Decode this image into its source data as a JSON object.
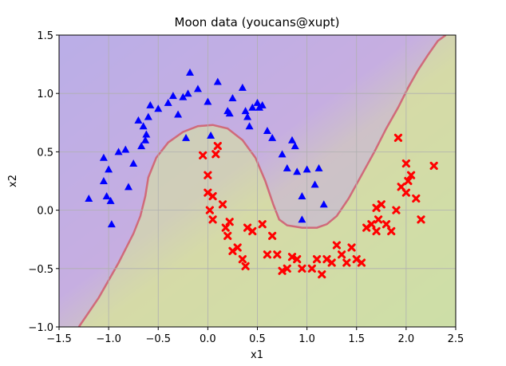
{
  "chart_data": {
    "type": "scatter",
    "title": "Moon data (youcans@xupt)",
    "xlabel": "x1",
    "ylabel": "x2",
    "xlim": [
      -1.5,
      2.5
    ],
    "ylim": [
      -1.0,
      1.5
    ],
    "xticks": [
      "−1.5",
      "−1.0",
      "−0.5",
      "0.0",
      "0.5",
      "1.0",
      "1.5",
      "2.0",
      "2.5"
    ],
    "yticks": [
      "−1.0",
      "−0.5",
      "0.0",
      "0.5",
      "1.0",
      "1.5"
    ],
    "grid": true,
    "background": {
      "type": "decision-regions",
      "upper_region_color": "#c8aee0",
      "lower_region_color": "#d6dca6",
      "boundary_color": "#d06a7a",
      "boundary": [
        [
          -1.3,
          -1.0
        ],
        [
          -1.1,
          -0.75
        ],
        [
          -0.9,
          -0.45
        ],
        [
          -0.75,
          -0.2
        ],
        [
          -0.68,
          -0.05
        ],
        [
          -0.63,
          0.12
        ],
        [
          -0.6,
          0.28
        ],
        [
          -0.52,
          0.45
        ],
        [
          -0.4,
          0.58
        ],
        [
          -0.25,
          0.67
        ],
        [
          -0.1,
          0.72
        ],
        [
          0.05,
          0.73
        ],
        [
          0.2,
          0.7
        ],
        [
          0.35,
          0.6
        ],
        [
          0.48,
          0.45
        ],
        [
          0.58,
          0.25
        ],
        [
          0.66,
          0.05
        ],
        [
          0.72,
          -0.08
        ],
        [
          0.8,
          -0.13
        ],
        [
          0.95,
          -0.15
        ],
        [
          1.1,
          -0.15
        ],
        [
          1.2,
          -0.12
        ],
        [
          1.3,
          -0.05
        ],
        [
          1.42,
          0.1
        ],
        [
          1.55,
          0.3
        ],
        [
          1.68,
          0.5
        ],
        [
          1.8,
          0.7
        ],
        [
          1.92,
          0.88
        ],
        [
          2.02,
          1.05
        ],
        [
          2.12,
          1.2
        ],
        [
          2.22,
          1.33
        ],
        [
          2.32,
          1.45
        ],
        [
          2.4,
          1.5
        ]
      ]
    },
    "series": [
      {
        "marker": "triangle",
        "color": "#0000ff",
        "points": [
          [
            -1.2,
            0.1
          ],
          [
            -1.05,
            0.45
          ],
          [
            -1.05,
            0.25
          ],
          [
            -1.02,
            0.12
          ],
          [
            -1.0,
            0.35
          ],
          [
            -0.98,
            0.08
          ],
          [
            -0.97,
            -0.12
          ],
          [
            -0.9,
            0.5
          ],
          [
            -0.83,
            0.52
          ],
          [
            -0.8,
            0.2
          ],
          [
            -0.75,
            0.4
          ],
          [
            -0.7,
            0.77
          ],
          [
            -0.65,
            0.72
          ],
          [
            -0.67,
            0.55
          ],
          [
            -0.63,
            0.6
          ],
          [
            -0.62,
            0.65
          ],
          [
            -0.6,
            0.8
          ],
          [
            -0.58,
            0.9
          ],
          [
            -0.5,
            0.87
          ],
          [
            -0.4,
            0.92
          ],
          [
            -0.35,
            0.98
          ],
          [
            -0.3,
            0.82
          ],
          [
            -0.25,
            0.97
          ],
          [
            -0.2,
            1.0
          ],
          [
            -0.22,
            0.62
          ],
          [
            -0.18,
            1.18
          ],
          [
            -0.1,
            1.04
          ],
          [
            0.0,
            0.93
          ],
          [
            0.03,
            0.64
          ],
          [
            0.1,
            1.1
          ],
          [
            0.2,
            0.85
          ],
          [
            0.22,
            0.83
          ],
          [
            0.25,
            0.96
          ],
          [
            0.35,
            1.05
          ],
          [
            0.38,
            0.85
          ],
          [
            0.4,
            0.8
          ],
          [
            0.42,
            0.72
          ],
          [
            0.45,
            0.88
          ],
          [
            0.5,
            0.92
          ],
          [
            0.52,
            0.88
          ],
          [
            0.55,
            0.9
          ],
          [
            0.6,
            0.68
          ],
          [
            0.65,
            0.62
          ],
          [
            0.75,
            0.48
          ],
          [
            0.8,
            0.36
          ],
          [
            0.85,
            0.6
          ],
          [
            0.88,
            0.55
          ],
          [
            0.9,
            0.33
          ],
          [
            0.95,
            0.12
          ],
          [
            1.0,
            0.35
          ],
          [
            1.08,
            0.22
          ],
          [
            1.12,
            0.36
          ],
          [
            1.17,
            0.05
          ],
          [
            0.95,
            -0.08
          ]
        ]
      },
      {
        "marker": "x",
        "color": "#ff0000",
        "points": [
          [
            -0.05,
            0.47
          ],
          [
            0.0,
            0.3
          ],
          [
            0.0,
            0.15
          ],
          [
            0.02,
            0.0
          ],
          [
            0.05,
            -0.08
          ],
          [
            0.05,
            0.12
          ],
          [
            0.08,
            0.48
          ],
          [
            0.1,
            0.55
          ],
          [
            0.15,
            0.05
          ],
          [
            0.18,
            -0.15
          ],
          [
            0.2,
            -0.22
          ],
          [
            0.22,
            -0.1
          ],
          [
            0.25,
            -0.35
          ],
          [
            0.3,
            -0.32
          ],
          [
            0.35,
            -0.42
          ],
          [
            0.38,
            -0.48
          ],
          [
            0.4,
            -0.15
          ],
          [
            0.45,
            -0.18
          ],
          [
            0.55,
            -0.12
          ],
          [
            0.6,
            -0.38
          ],
          [
            0.65,
            -0.22
          ],
          [
            0.7,
            -0.38
          ],
          [
            0.75,
            -0.52
          ],
          [
            0.8,
            -0.5
          ],
          [
            0.85,
            -0.4
          ],
          [
            0.9,
            -0.42
          ],
          [
            0.95,
            -0.5
          ],
          [
            1.05,
            -0.5
          ],
          [
            1.1,
            -0.42
          ],
          [
            1.15,
            -0.55
          ],
          [
            1.2,
            -0.42
          ],
          [
            1.25,
            -0.45
          ],
          [
            1.3,
            -0.3
          ],
          [
            1.35,
            -0.38
          ],
          [
            1.4,
            -0.45
          ],
          [
            1.45,
            -0.32
          ],
          [
            1.5,
            -0.42
          ],
          [
            1.55,
            -0.45
          ],
          [
            1.6,
            -0.15
          ],
          [
            1.65,
            -0.12
          ],
          [
            1.7,
            -0.18
          ],
          [
            1.72,
            -0.08
          ],
          [
            1.75,
            0.05
          ],
          [
            1.8,
            -0.12
          ],
          [
            1.85,
            -0.18
          ],
          [
            1.9,
            0.0
          ],
          [
            1.95,
            0.2
          ],
          [
            2.0,
            0.15
          ],
          [
            2.0,
            0.4
          ],
          [
            2.02,
            0.25
          ],
          [
            2.05,
            0.3
          ],
          [
            2.1,
            0.1
          ],
          [
            2.15,
            -0.08
          ],
          [
            2.28,
            0.38
          ],
          [
            1.92,
            0.62
          ],
          [
            1.7,
            0.02
          ]
        ]
      }
    ]
  }
}
